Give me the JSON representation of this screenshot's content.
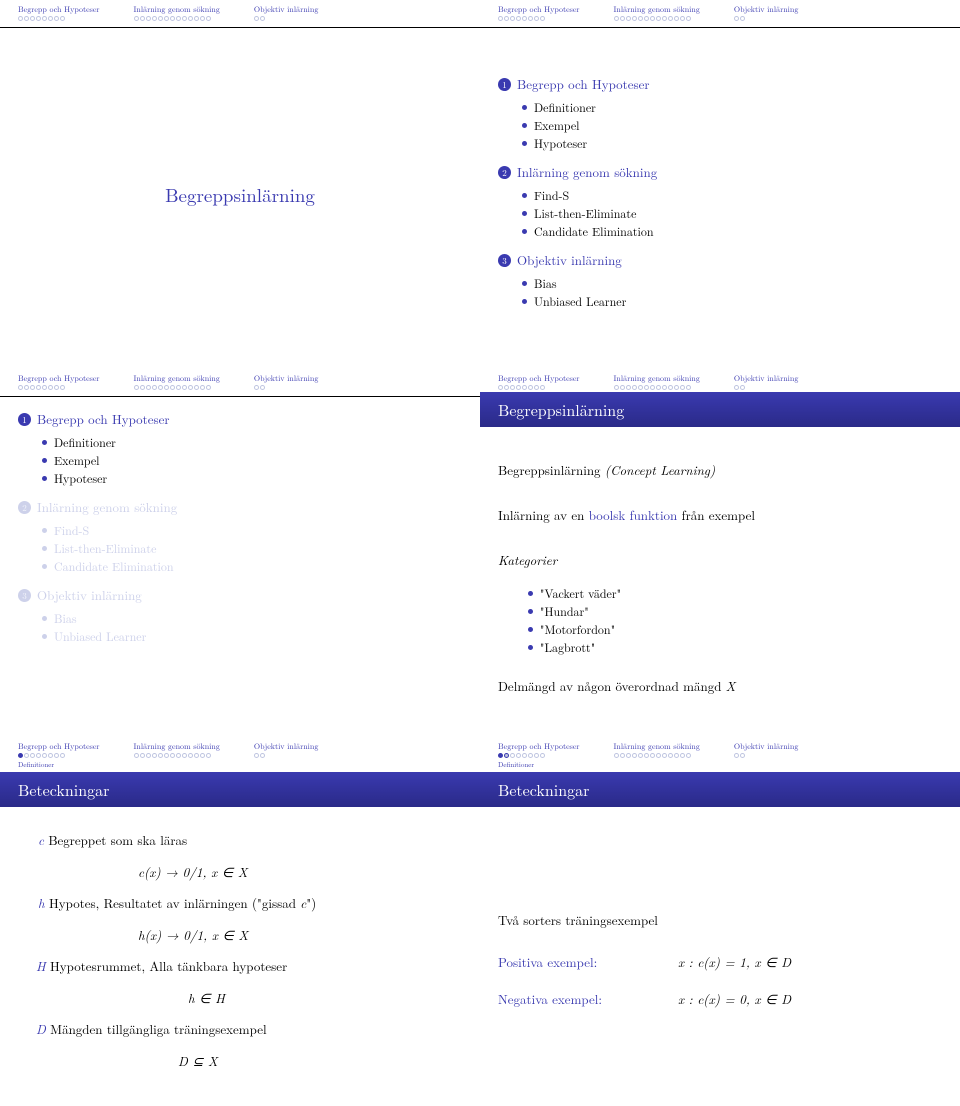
{
  "sections": [
    "Begrepp och Hypoteser",
    "Inlärning genom sökning",
    "Objektiv inlärning"
  ],
  "dots": [
    8,
    13,
    2
  ],
  "mainTitle": "Begreppsinlärning",
  "toc": {
    "s1": {
      "t": "Begrepp och Hypoteser",
      "i": [
        "Definitioner",
        "Exempel",
        "Hypoteser"
      ]
    },
    "s2": {
      "t": "Inlärning genom sökning",
      "i": [
        "Find-S",
        "List-then-Eliminate",
        "Candidate Elimination"
      ]
    },
    "s3": {
      "t": "Objektiv inlärning",
      "i": [
        "Bias",
        "Unbiased Learner"
      ]
    }
  },
  "s4": {
    "title": "Begreppsinlärning",
    "l1a": "Begreppsinlärning ",
    "l1b": "(Concept Learning)",
    "l2a": "Inlärning av en ",
    "l2b": "boolsk funktion",
    "l2c": " från exempel",
    "kat": "Kategorier",
    "items": [
      "\"Vackert väder\"",
      "\"Hundar\"",
      "\"Motorfordon\"",
      "\"Lagbrott\""
    ],
    "l3": "Delmängd av någon överordnad mängd ",
    "l3x": "X"
  },
  "s5": {
    "subsec": "Definitioner",
    "title": "Beteckningar",
    "c": "c",
    "ct": " Begreppet som ska läras",
    "cf": "c(x) → 0/1,   x ∈ X",
    "h": "h",
    "ht": " Hypotes, Resultatet av inlärningen (\"gissad ",
    "ht2": "c",
    "ht3": "\")",
    "hf": "h(x) → 0/1,   x ∈ X",
    "H": "H",
    "Ht": " Hypotesrummet, Alla tänkbara hypoteser",
    "Hf": "h ∈ H",
    "D": "D",
    "Dt": " Mängden tillgängliga träningsexempel",
    "Df": "D ⊆ X"
  },
  "s6": {
    "subsec": "Definitioner",
    "title": "Beteckningar",
    "t1": "Två sorters träningsexempel",
    "pos": "Positiva exempel:",
    "posf": "x : c(x) = 1,   x ∈ D",
    "neg": "Negativa exempel:",
    "negf": "x : c(x) = 0,   x ∈ D"
  }
}
